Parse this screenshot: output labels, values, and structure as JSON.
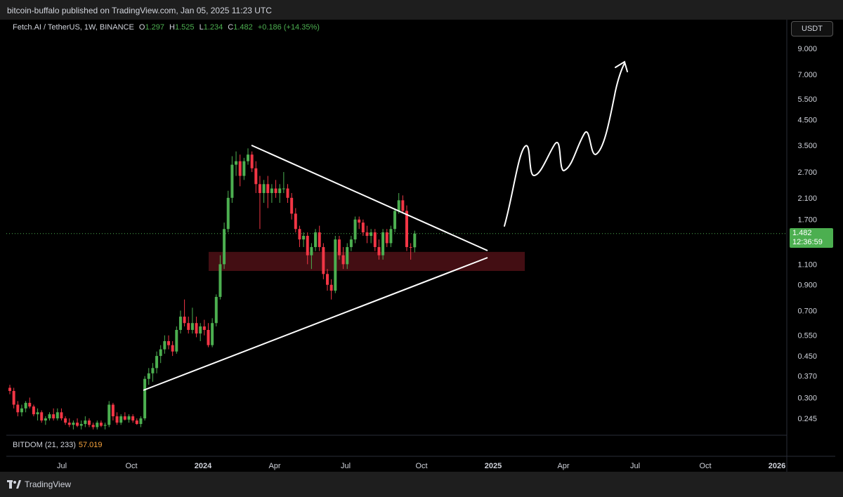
{
  "header": {
    "publish_line": "bitcoin-buffalo published on TradingView.com, Jan 05, 2025 11:23 UTC"
  },
  "legend": {
    "symbol": "Fetch.AI / TetherUS, 1W, BINANCE",
    "o_label": "O",
    "o_value": "1.297",
    "h_label": "H",
    "h_value": "1.525",
    "l_label": "L",
    "l_value": "1.234",
    "c_label": "C",
    "c_value": "1.482",
    "change": "+0.186 (+14.35%)"
  },
  "currency_button": "USDT",
  "last_price": {
    "price": "1.482",
    "countdown": "12:36:59"
  },
  "indicator": {
    "label": "BITDOM (21, 233)",
    "value": "57.019"
  },
  "footer": {
    "brand": "TradingView"
  },
  "colors": {
    "up": "#4caf50",
    "down": "#f23645",
    "zone": "#4a1015",
    "accent_orange": "#f7a33c",
    "background": "#000000"
  },
  "chart_data": {
    "type": "candlestick",
    "scale": "log",
    "y_ticks": [
      9.0,
      7.0,
      5.5,
      4.5,
      3.5,
      2.7,
      2.1,
      1.7,
      1.1,
      0.9,
      0.7,
      0.55,
      0.45,
      0.37,
      0.3,
      0.245
    ],
    "y_tick_labels": [
      "9.000",
      "7.000",
      "5.500",
      "4.500",
      "3.500",
      "2.700",
      "2.100",
      "1.700",
      "1.100",
      "0.900",
      "0.700",
      "0.550",
      "0.450",
      "0.370",
      "0.300",
      "0.245"
    ],
    "x_ticks": [
      {
        "label": "Jul",
        "bold": false
      },
      {
        "label": "Oct",
        "bold": false
      },
      {
        "label": "2024",
        "bold": true
      },
      {
        "label": "Apr",
        "bold": false
      },
      {
        "label": "Jul",
        "bold": false
      },
      {
        "label": "Oct",
        "bold": false
      },
      {
        "label": "2025",
        "bold": true
      },
      {
        "label": "Apr",
        "bold": false
      },
      {
        "label": "Jul",
        "bold": false
      },
      {
        "label": "Oct",
        "bold": false
      },
      {
        "label": "2026",
        "bold": true
      }
    ],
    "last_close": 1.482,
    "candles": [
      {
        "o": 0.33,
        "h": 0.34,
        "l": 0.31,
        "c": 0.32
      },
      {
        "o": 0.32,
        "h": 0.33,
        "l": 0.27,
        "c": 0.28
      },
      {
        "o": 0.28,
        "h": 0.29,
        "l": 0.25,
        "c": 0.26
      },
      {
        "o": 0.26,
        "h": 0.28,
        "l": 0.25,
        "c": 0.27
      },
      {
        "o": 0.27,
        "h": 0.29,
        "l": 0.26,
        "c": 0.285
      },
      {
        "o": 0.285,
        "h": 0.3,
        "l": 0.27,
        "c": 0.275
      },
      {
        "o": 0.275,
        "h": 0.28,
        "l": 0.25,
        "c": 0.255
      },
      {
        "o": 0.255,
        "h": 0.27,
        "l": 0.24,
        "c": 0.26
      },
      {
        "o": 0.26,
        "h": 0.265,
        "l": 0.235,
        "c": 0.24
      },
      {
        "o": 0.24,
        "h": 0.25,
        "l": 0.23,
        "c": 0.245
      },
      {
        "o": 0.245,
        "h": 0.26,
        "l": 0.24,
        "c": 0.255
      },
      {
        "o": 0.255,
        "h": 0.27,
        "l": 0.24,
        "c": 0.245
      },
      {
        "o": 0.245,
        "h": 0.27,
        "l": 0.24,
        "c": 0.26
      },
      {
        "o": 0.26,
        "h": 0.27,
        "l": 0.24,
        "c": 0.245
      },
      {
        "o": 0.245,
        "h": 0.25,
        "l": 0.23,
        "c": 0.235
      },
      {
        "o": 0.235,
        "h": 0.245,
        "l": 0.225,
        "c": 0.23
      },
      {
        "o": 0.23,
        "h": 0.24,
        "l": 0.22,
        "c": 0.235
      },
      {
        "o": 0.235,
        "h": 0.245,
        "l": 0.225,
        "c": 0.228
      },
      {
        "o": 0.228,
        "h": 0.24,
        "l": 0.22,
        "c": 0.232
      },
      {
        "o": 0.232,
        "h": 0.25,
        "l": 0.225,
        "c": 0.24
      },
      {
        "o": 0.24,
        "h": 0.245,
        "l": 0.225,
        "c": 0.23
      },
      {
        "o": 0.23,
        "h": 0.235,
        "l": 0.22,
        "c": 0.225
      },
      {
        "o": 0.225,
        "h": 0.24,
        "l": 0.22,
        "c": 0.235
      },
      {
        "o": 0.235,
        "h": 0.24,
        "l": 0.225,
        "c": 0.228
      },
      {
        "o": 0.228,
        "h": 0.235,
        "l": 0.22,
        "c": 0.23
      },
      {
        "o": 0.23,
        "h": 0.29,
        "l": 0.225,
        "c": 0.28
      },
      {
        "o": 0.28,
        "h": 0.285,
        "l": 0.24,
        "c": 0.25
      },
      {
        "o": 0.25,
        "h": 0.26,
        "l": 0.23,
        "c": 0.235
      },
      {
        "o": 0.235,
        "h": 0.255,
        "l": 0.23,
        "c": 0.25
      },
      {
        "o": 0.25,
        "h": 0.26,
        "l": 0.24,
        "c": 0.242
      },
      {
        "o": 0.242,
        "h": 0.255,
        "l": 0.235,
        "c": 0.25
      },
      {
        "o": 0.25,
        "h": 0.255,
        "l": 0.235,
        "c": 0.24
      },
      {
        "o": 0.24,
        "h": 0.245,
        "l": 0.23,
        "c": 0.232
      },
      {
        "o": 0.232,
        "h": 0.25,
        "l": 0.225,
        "c": 0.245
      },
      {
        "o": 0.245,
        "h": 0.37,
        "l": 0.24,
        "c": 0.36
      },
      {
        "o": 0.36,
        "h": 0.4,
        "l": 0.34,
        "c": 0.38
      },
      {
        "o": 0.38,
        "h": 0.42,
        "l": 0.35,
        "c": 0.4
      },
      {
        "o": 0.4,
        "h": 0.47,
        "l": 0.38,
        "c": 0.45
      },
      {
        "o": 0.45,
        "h": 0.5,
        "l": 0.42,
        "c": 0.48
      },
      {
        "o": 0.48,
        "h": 0.55,
        "l": 0.46,
        "c": 0.52
      },
      {
        "o": 0.52,
        "h": 0.55,
        "l": 0.48,
        "c": 0.5
      },
      {
        "o": 0.5,
        "h": 0.52,
        "l": 0.45,
        "c": 0.47
      },
      {
        "o": 0.47,
        "h": 0.6,
        "l": 0.46,
        "c": 0.58
      },
      {
        "o": 0.58,
        "h": 0.7,
        "l": 0.56,
        "c": 0.66
      },
      {
        "o": 0.66,
        "h": 0.78,
        "l": 0.6,
        "c": 0.62
      },
      {
        "o": 0.62,
        "h": 0.66,
        "l": 0.56,
        "c": 0.58
      },
      {
        "o": 0.58,
        "h": 0.72,
        "l": 0.56,
        "c": 0.62
      },
      {
        "o": 0.62,
        "h": 0.66,
        "l": 0.54,
        "c": 0.56
      },
      {
        "o": 0.56,
        "h": 0.62,
        "l": 0.52,
        "c": 0.6
      },
      {
        "o": 0.6,
        "h": 0.64,
        "l": 0.55,
        "c": 0.58
      },
      {
        "o": 0.58,
        "h": 0.62,
        "l": 0.49,
        "c": 0.5
      },
      {
        "o": 0.5,
        "h": 0.65,
        "l": 0.49,
        "c": 0.62
      },
      {
        "o": 0.62,
        "h": 0.82,
        "l": 0.6,
        "c": 0.8
      },
      {
        "o": 0.8,
        "h": 1.2,
        "l": 0.78,
        "c": 1.1
      },
      {
        "o": 1.1,
        "h": 1.65,
        "l": 1.05,
        "c": 1.55
      },
      {
        "o": 1.55,
        "h": 2.25,
        "l": 1.5,
        "c": 2.1
      },
      {
        "o": 2.1,
        "h": 3.15,
        "l": 2.0,
        "c": 2.9
      },
      {
        "o": 2.9,
        "h": 3.3,
        "l": 2.6,
        "c": 3.0
      },
      {
        "o": 3.0,
        "h": 3.2,
        "l": 2.35,
        "c": 2.6
      },
      {
        "o": 2.6,
        "h": 3.1,
        "l": 2.5,
        "c": 3.0
      },
      {
        "o": 3.0,
        "h": 3.4,
        "l": 2.9,
        "c": 3.2
      },
      {
        "o": 3.2,
        "h": 3.3,
        "l": 2.7,
        "c": 2.8
      },
      {
        "o": 2.8,
        "h": 3.0,
        "l": 2.2,
        "c": 2.4
      },
      {
        "o": 2.4,
        "h": 2.6,
        "l": 1.55,
        "c": 2.2
      },
      {
        "o": 2.2,
        "h": 2.5,
        "l": 2.0,
        "c": 2.4
      },
      {
        "o": 2.4,
        "h": 2.6,
        "l": 1.9,
        "c": 2.2
      },
      {
        "o": 2.2,
        "h": 2.4,
        "l": 2.0,
        "c": 2.3
      },
      {
        "o": 2.3,
        "h": 2.5,
        "l": 2.1,
        "c": 2.2
      },
      {
        "o": 2.2,
        "h": 2.4,
        "l": 2.0,
        "c": 2.3
      },
      {
        "o": 2.3,
        "h": 2.7,
        "l": 2.2,
        "c": 2.3
      },
      {
        "o": 2.3,
        "h": 2.4,
        "l": 2.0,
        "c": 2.1
      },
      {
        "o": 2.1,
        "h": 2.2,
        "l": 1.7,
        "c": 1.8
      },
      {
        "o": 1.8,
        "h": 1.9,
        "l": 1.5,
        "c": 1.55
      },
      {
        "o": 1.55,
        "h": 1.6,
        "l": 1.3,
        "c": 1.4
      },
      {
        "o": 1.4,
        "h": 1.5,
        "l": 1.3,
        "c": 1.45
      },
      {
        "o": 1.45,
        "h": 1.5,
        "l": 1.1,
        "c": 1.2
      },
      {
        "o": 1.2,
        "h": 1.35,
        "l": 1.05,
        "c": 1.3
      },
      {
        "o": 1.3,
        "h": 1.55,
        "l": 1.25,
        "c": 1.5
      },
      {
        "o": 1.5,
        "h": 1.6,
        "l": 1.25,
        "c": 1.3
      },
      {
        "o": 1.3,
        "h": 1.35,
        "l": 0.95,
        "c": 1.0
      },
      {
        "o": 1.0,
        "h": 1.05,
        "l": 0.85,
        "c": 0.9
      },
      {
        "o": 0.9,
        "h": 0.95,
        "l": 0.78,
        "c": 0.85
      },
      {
        "o": 0.85,
        "h": 1.45,
        "l": 0.83,
        "c": 1.4
      },
      {
        "o": 1.4,
        "h": 1.45,
        "l": 1.15,
        "c": 1.2
      },
      {
        "o": 1.2,
        "h": 1.3,
        "l": 1.05,
        "c": 1.1
      },
      {
        "o": 1.1,
        "h": 1.35,
        "l": 1.05,
        "c": 1.3
      },
      {
        "o": 1.3,
        "h": 1.45,
        "l": 1.25,
        "c": 1.4
      },
      {
        "o": 1.4,
        "h": 1.75,
        "l": 1.35,
        "c": 1.7
      },
      {
        "o": 1.7,
        "h": 1.75,
        "l": 1.55,
        "c": 1.65
      },
      {
        "o": 1.65,
        "h": 1.7,
        "l": 1.45,
        "c": 1.5
      },
      {
        "o": 1.5,
        "h": 1.6,
        "l": 1.35,
        "c": 1.45
      },
      {
        "o": 1.45,
        "h": 1.55,
        "l": 1.35,
        "c": 1.5
      },
      {
        "o": 1.5,
        "h": 1.55,
        "l": 1.25,
        "c": 1.3
      },
      {
        "o": 1.3,
        "h": 1.4,
        "l": 1.15,
        "c": 1.2
      },
      {
        "o": 1.2,
        "h": 1.55,
        "l": 1.15,
        "c": 1.5
      },
      {
        "o": 1.5,
        "h": 1.55,
        "l": 1.3,
        "c": 1.35
      },
      {
        "o": 1.35,
        "h": 1.6,
        "l": 1.3,
        "c": 1.55
      },
      {
        "o": 1.55,
        "h": 1.9,
        "l": 1.5,
        "c": 1.85
      },
      {
        "o": 1.85,
        "h": 2.2,
        "l": 1.8,
        "c": 2.05
      },
      {
        "o": 2.05,
        "h": 2.15,
        "l": 1.8,
        "c": 1.85
      },
      {
        "o": 1.85,
        "h": 1.95,
        "l": 1.25,
        "c": 1.3
      },
      {
        "o": 1.3,
        "h": 1.35,
        "l": 1.15,
        "c": 1.297
      },
      {
        "o": 1.297,
        "h": 1.525,
        "l": 1.234,
        "c": 1.482
      }
    ]
  }
}
